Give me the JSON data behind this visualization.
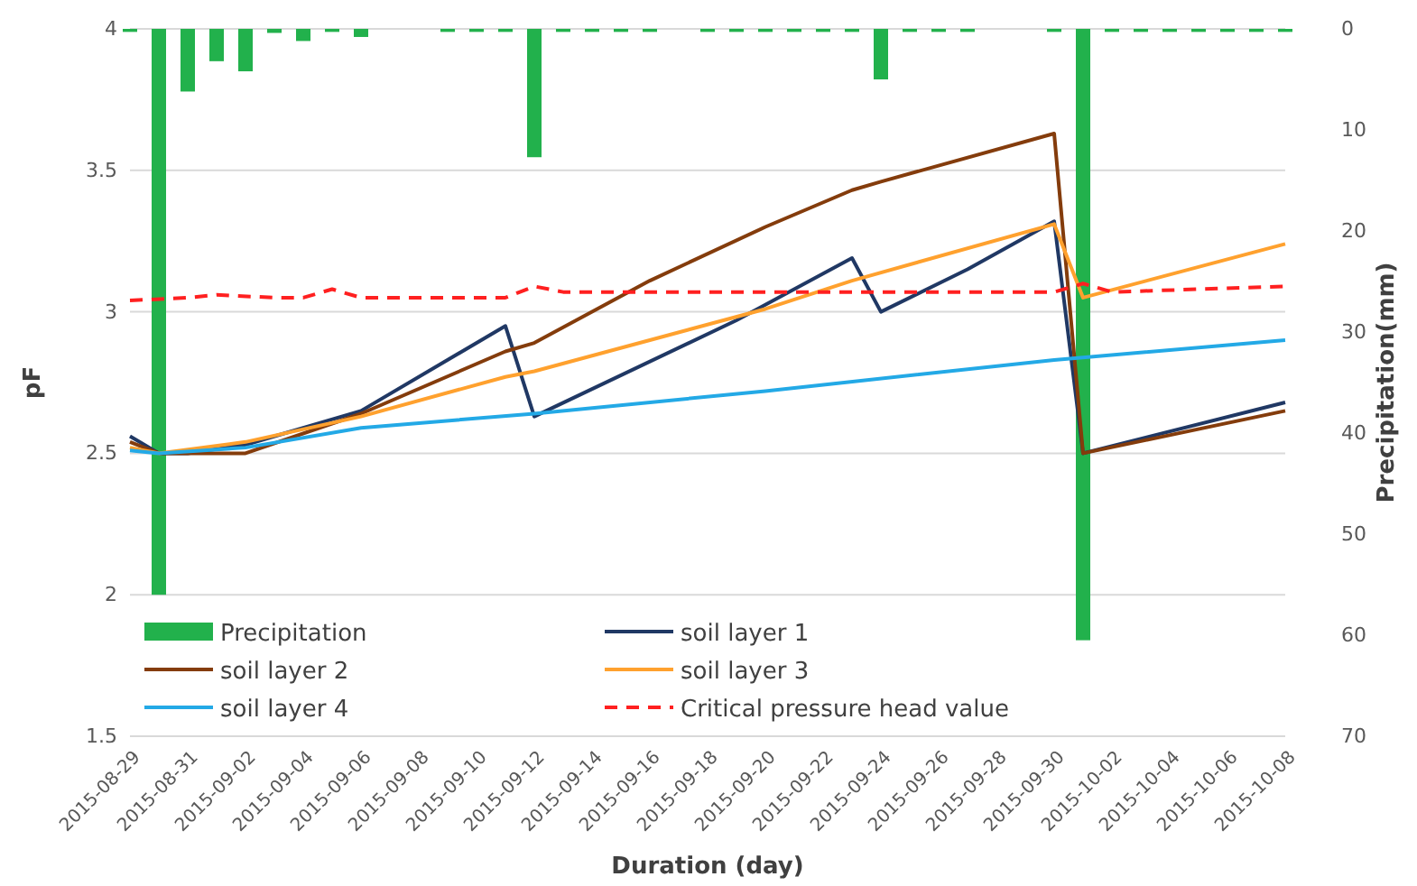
{
  "chart_data": {
    "type": "line",
    "xlabel": "Duration (day)",
    "ylabel": "pF",
    "y2label": "Precipitation(mm)",
    "x": [
      "2015-08-29",
      "2015-08-30",
      "2015-08-31",
      "2015-09-01",
      "2015-09-02",
      "2015-09-03",
      "2015-09-04",
      "2015-09-05",
      "2015-09-06",
      "2015-09-07",
      "2015-09-08",
      "2015-09-09",
      "2015-09-10",
      "2015-09-11",
      "2015-09-12",
      "2015-09-13",
      "2015-09-14",
      "2015-09-15",
      "2015-09-16",
      "2015-09-17",
      "2015-09-18",
      "2015-09-19",
      "2015-09-20",
      "2015-09-21",
      "2015-09-22",
      "2015-09-23",
      "2015-09-24",
      "2015-09-25",
      "2015-09-26",
      "2015-09-27",
      "2015-09-28",
      "2015-09-29",
      "2015-09-30",
      "2015-10-01",
      "2015-10-02",
      "2015-10-03",
      "2015-10-04",
      "2015-10-05",
      "2015-10-06",
      "2015-10-07",
      "2015-10-08"
    ],
    "series": [
      {
        "name": "Precipitation",
        "type": "bar",
        "axis": "y2",
        "color": "#22b14c",
        "values": [
          0.3,
          56,
          6.2,
          3.2,
          4.2,
          0.4,
          1.2,
          0.3,
          0.8,
          0,
          0,
          0.3,
          0.3,
          0.3,
          12.7,
          0.3,
          0.3,
          0.3,
          0.3,
          0,
          0.3,
          0.3,
          0.3,
          0.3,
          0.3,
          0.3,
          5,
          0.3,
          0.3,
          0.3,
          0,
          0,
          0.3,
          60.5,
          0.3,
          0.3,
          0.3,
          0.3,
          0.3,
          0.3,
          0.3
        ]
      },
      {
        "name": "soil layer 1",
        "color": "#203864",
        "x": [
          "2015-08-29",
          "2015-08-30",
          "2015-08-31",
          "2015-09-02",
          "2015-09-06",
          "2015-09-11",
          "2015-09-12",
          "2015-09-19",
          "2015-09-23",
          "2015-09-24",
          "2015-09-27",
          "2015-09-30",
          "2015-10-01",
          "2015-10-08"
        ],
        "values": [
          2.56,
          2.5,
          2.5,
          2.53,
          2.65,
          2.95,
          2.63,
          2.97,
          3.19,
          3.0,
          3.15,
          3.32,
          2.5,
          2.68
        ]
      },
      {
        "name": "soil layer 2",
        "color": "#843c0c",
        "x": [
          "2015-08-29",
          "2015-08-30",
          "2015-09-02",
          "2015-09-06",
          "2015-09-11",
          "2015-09-12",
          "2015-09-16",
          "2015-09-20",
          "2015-09-23",
          "2015-09-24",
          "2015-09-30",
          "2015-10-01",
          "2015-10-08"
        ],
        "values": [
          2.54,
          2.5,
          2.5,
          2.64,
          2.86,
          2.89,
          3.11,
          3.3,
          3.43,
          3.46,
          3.63,
          2.5,
          2.65
        ]
      },
      {
        "name": "soil layer 3",
        "color": "#ffa12e",
        "x": [
          "2015-08-29",
          "2015-08-30",
          "2015-09-02",
          "2015-09-06",
          "2015-09-11",
          "2015-09-12",
          "2015-09-16",
          "2015-09-20",
          "2015-09-23",
          "2015-09-30",
          "2015-10-01",
          "2015-10-08"
        ],
        "values": [
          2.52,
          2.5,
          2.54,
          2.63,
          2.77,
          2.79,
          2.9,
          3.01,
          3.11,
          3.31,
          3.05,
          3.24
        ]
      },
      {
        "name": "soil layer 4",
        "color": "#23a9e6",
        "x": [
          "2015-08-29",
          "2015-08-30",
          "2015-09-02",
          "2015-09-06",
          "2015-09-12",
          "2015-09-20",
          "2015-09-30",
          "2015-10-08"
        ],
        "values": [
          2.51,
          2.5,
          2.52,
          2.59,
          2.64,
          2.72,
          2.83,
          2.9
        ]
      },
      {
        "name": "Critical pressure head value",
        "line_style": "dashed",
        "color": "#ff2020",
        "x": [
          "2015-08-29",
          "2015-08-31",
          "2015-09-01",
          "2015-09-03",
          "2015-09-04",
          "2015-09-05",
          "2015-09-06",
          "2015-09-11",
          "2015-09-12",
          "2015-09-13",
          "2015-09-30",
          "2015-10-01",
          "2015-10-02",
          "2015-10-08"
        ],
        "values": [
          3.04,
          3.05,
          3.06,
          3.05,
          3.05,
          3.08,
          3.05,
          3.05,
          3.09,
          3.07,
          3.07,
          3.1,
          3.07,
          3.09
        ]
      }
    ],
    "xlim": [
      "2015-08-29",
      "2015-10-08"
    ],
    "xticks": [
      "2015-08-29",
      "2015-08-31",
      "2015-09-02",
      "2015-09-04",
      "2015-09-06",
      "2015-09-08",
      "2015-09-10",
      "2015-09-12",
      "2015-09-14",
      "2015-09-16",
      "2015-09-18",
      "2015-09-20",
      "2015-09-22",
      "2015-09-24",
      "2015-09-26",
      "2015-09-28",
      "2015-09-30",
      "2015-10-02",
      "2015-10-04",
      "2015-10-06",
      "2015-10-08"
    ],
    "ylim": [
      1.5,
      4
    ],
    "yticks": [
      1.5,
      2,
      2.5,
      3,
      3.5,
      4
    ],
    "y2lim": [
      70,
      0
    ],
    "y2ticks": [
      0,
      10,
      20,
      30,
      40,
      50,
      60,
      70
    ],
    "grid": "y",
    "legend": "bottom"
  }
}
